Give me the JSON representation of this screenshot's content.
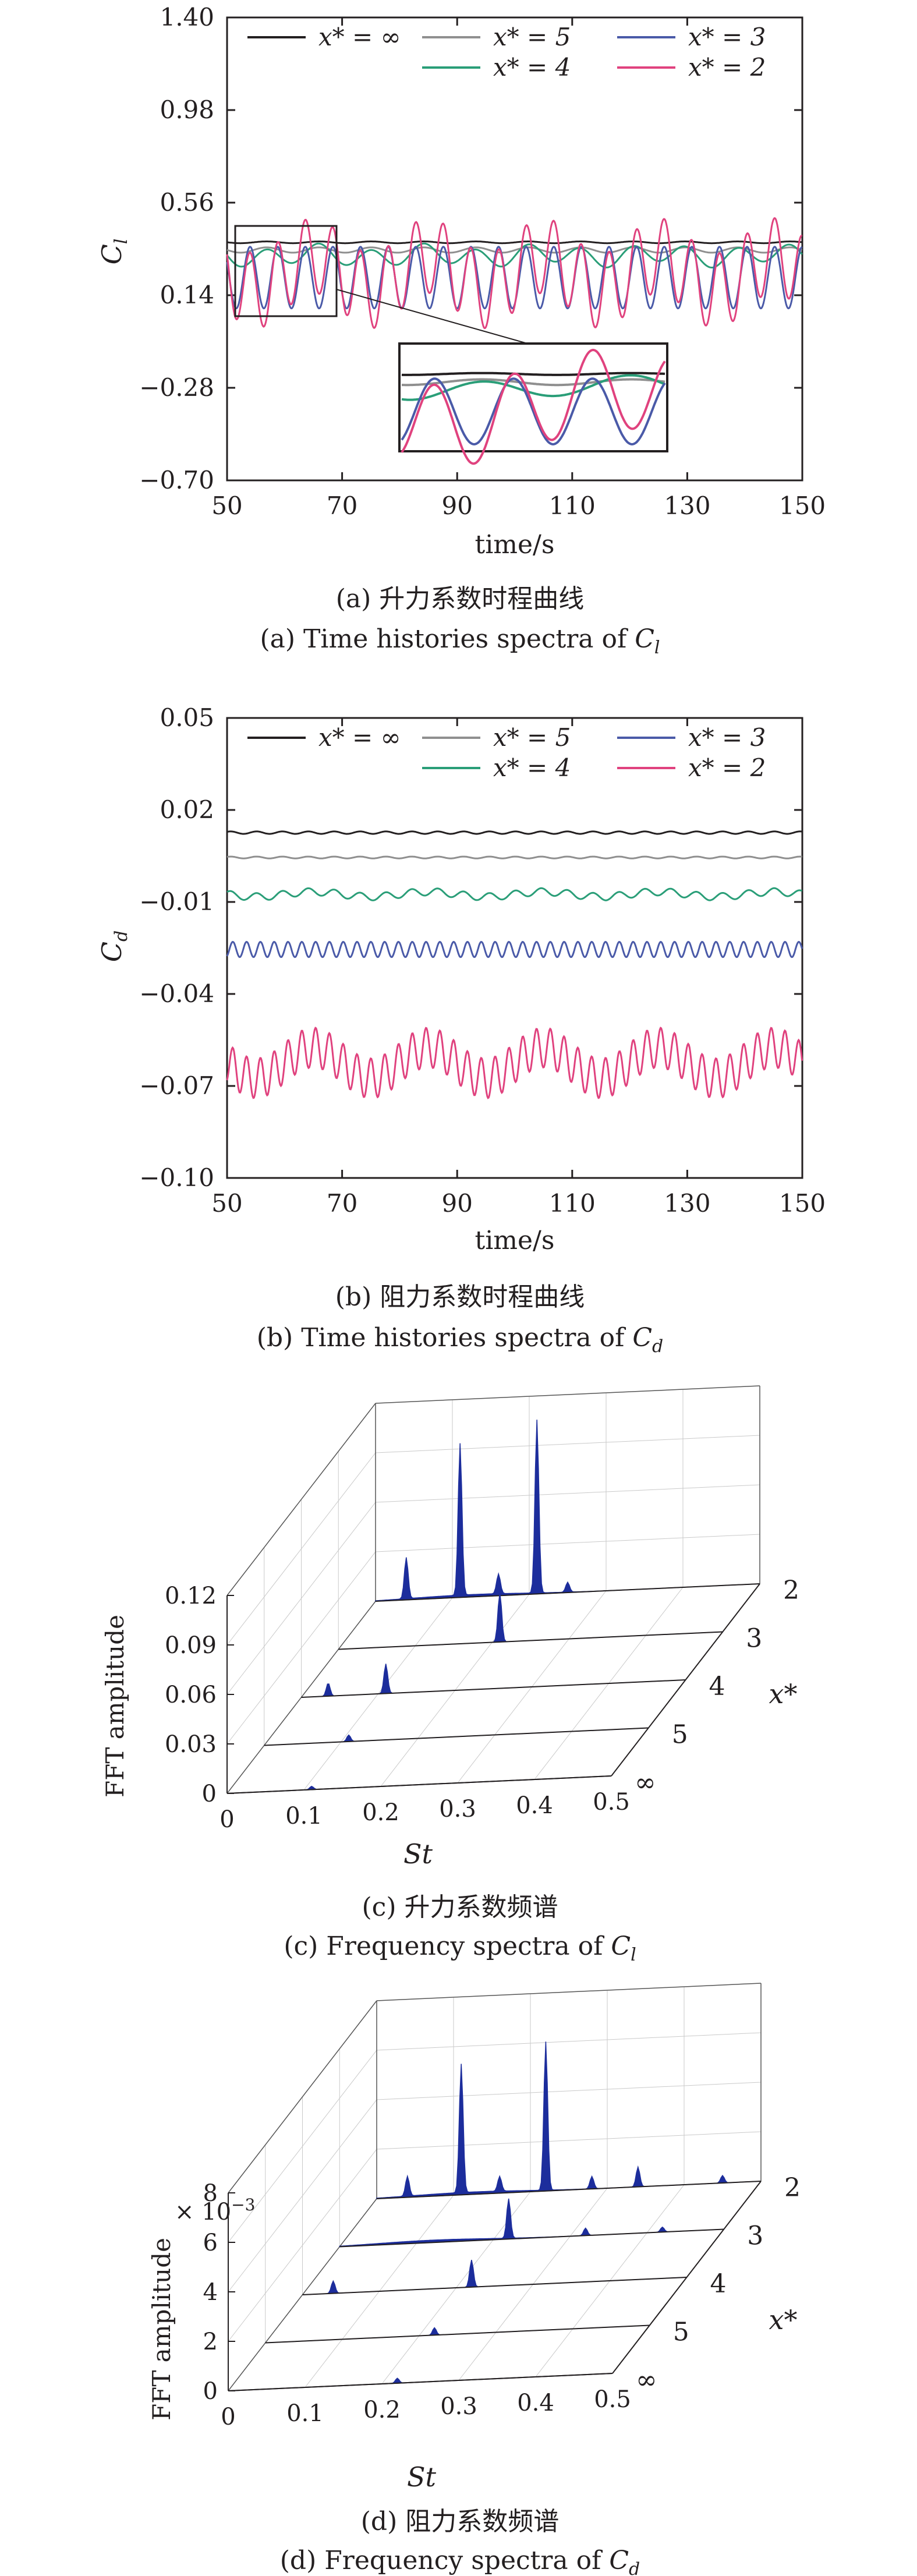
{
  "colors": {
    "inf": "#231f20",
    "x5": "#8f8f8f",
    "x3": "#4a5aa8",
    "x4": "#2a9e78",
    "x2": "#e0427e",
    "spectrum_fill": "#1c2d9c",
    "axis": "#231f20"
  },
  "chart_data": [
    {
      "type": "line",
      "panel": "a",
      "xlabel": "time/s",
      "ylabel": "C",
      "ylabel_sub": "l",
      "xlim": [
        50,
        150
      ],
      "ylim": [
        -0.7,
        1.4
      ],
      "xticks": [
        "50",
        "70",
        "90",
        "110",
        "130",
        "150"
      ],
      "yticks": [
        "1.40",
        "0.98",
        "0.56",
        "0.14",
        "−0.28",
        "−0.70"
      ],
      "legend_position": "top",
      "legend": [
        {
          "key": "inf",
          "label": "x* = ∞"
        },
        {
          "key": "x5",
          "label": "x* = 5"
        },
        {
          "key": "x3",
          "label": "x* = 3"
        },
        {
          "key": "x4",
          "label": "x* = 4"
        },
        {
          "key": "x2",
          "label": "x* = 2"
        }
      ],
      "series": [
        {
          "key": "inf",
          "name": "x* = ∞",
          "mean": 0.38,
          "amp": 0.004,
          "period": 9.1,
          "amp2": 0.0,
          "period2": 20
        },
        {
          "key": "x5",
          "name": "x* = 5",
          "mean": 0.345,
          "amp": 0.012,
          "period": 9.1,
          "amp2": 0.0,
          "period2": 20
        },
        {
          "key": "x4",
          "name": "x* = 4",
          "mean": 0.32,
          "amp": 0.04,
          "period": 9.1,
          "amp2": 0.015,
          "period2": 20
        },
        {
          "key": "x3",
          "name": "x* = 3",
          "mean": 0.22,
          "amp": 0.14,
          "period": 4.8,
          "amp2": 0.0,
          "period2": 20
        },
        {
          "key": "x2",
          "name": "x* = 2",
          "mean": 0.24,
          "amp": 0.17,
          "period": 4.8,
          "amp2": 0.08,
          "period2": 20
        }
      ],
      "inset": {
        "xlim": [
          52,
          68
        ],
        "ylim": [
          0.06,
          0.5
        ]
      },
      "caption_cn": "(a) 升力系数时程曲线",
      "caption_en_pre": "(a) Time histories spectra of ",
      "caption_en_var": "C",
      "caption_en_sub": "l"
    },
    {
      "type": "line",
      "panel": "b",
      "xlabel": "time/s",
      "ylabel": "C",
      "ylabel_sub": "d",
      "xlim": [
        50,
        150
      ],
      "ylim": [
        -0.1,
        0.05
      ],
      "xticks": [
        "50",
        "70",
        "90",
        "110",
        "130",
        "150"
      ],
      "yticks": [
        "0.05",
        "0.02",
        "−0.01",
        "−0.04",
        "−0.07",
        "−0.10"
      ],
      "legend_position": "top",
      "legend": [
        {
          "key": "inf",
          "label": "x* = ∞"
        },
        {
          "key": "x5",
          "label": "x* = 5"
        },
        {
          "key": "x3",
          "label": "x* = 3"
        },
        {
          "key": "x4",
          "label": "x* = 4"
        },
        {
          "key": "x2",
          "label": "x* = 2"
        }
      ],
      "series": [
        {
          "key": "inf",
          "name": "x* = ∞",
          "mean": 0.0126,
          "amp": 0.0004,
          "period": 4.5,
          "amp2": 0.0,
          "period2": 20
        },
        {
          "key": "x5",
          "name": "x* = 5",
          "mean": 0.0045,
          "amp": 0.0003,
          "period": 4.5,
          "amp2": 0.0,
          "period2": 20
        },
        {
          "key": "x4",
          "name": "x* = 4",
          "mean": -0.0075,
          "amp": 0.0012,
          "period": 4.5,
          "amp2": 0.0008,
          "period2": 20
        },
        {
          "key": "x3",
          "name": "x* = 3",
          "mean": -0.0255,
          "amp": 0.0025,
          "period": 2.4,
          "amp2": 0.0,
          "period2": 20
        },
        {
          "key": "x2",
          "name": "x* = 2",
          "mean": -0.0625,
          "amp": 0.0065,
          "period": 2.4,
          "amp2": 0.005,
          "period2": 20
        }
      ],
      "caption_cn": "(b) 阻力系数时程曲线",
      "caption_en_pre": "(b) Time histories spectra of ",
      "caption_en_var": "C",
      "caption_en_sub": "d"
    },
    {
      "type": "area",
      "panel": "c",
      "subtype": "waterfall-3d",
      "xlabel": "St",
      "zlabel": "FFT amplitude",
      "ylabel": "x*",
      "xlim": [
        0,
        0.5
      ],
      "zlim": [
        0,
        0.12
      ],
      "xticks": [
        "0",
        "0.1",
        "0.2",
        "0.3",
        "0.4",
        "0.5"
      ],
      "zticks": [
        "0",
        "0.03",
        "0.06",
        "0.09",
        "0.12"
      ],
      "yticks": [
        "∞",
        "5",
        "4",
        "3",
        "2"
      ],
      "series": [
        {
          "name": "∞",
          "peaks": [
            [
              0.11,
              0.002
            ]
          ]
        },
        {
          "name": "5",
          "peaks": [
            [
              0.11,
              0.004
            ]
          ]
        },
        {
          "name": "4",
          "peaks": [
            [
              0.035,
              0.008
            ],
            [
              0.11,
              0.018
            ]
          ]
        },
        {
          "name": "3",
          "peaks": [
            [
              0.21,
              0.03
            ]
          ]
        },
        {
          "name": "2",
          "peaks": [
            [
              0.04,
              0.025
            ],
            [
              0.11,
              0.092
            ],
            [
              0.16,
              0.012
            ],
            [
              0.21,
              0.105
            ],
            [
              0.25,
              0.006
            ]
          ]
        }
      ],
      "caption_cn": "(c) 升力系数频谱",
      "caption_en_pre": "(c) Frequency spectra of ",
      "caption_en_var": "C",
      "caption_en_sub": "l"
    },
    {
      "type": "area",
      "panel": "d",
      "subtype": "waterfall-3d",
      "xlabel": "St",
      "zlabel": "FFT amplitude",
      "ylabel": "x*",
      "scale_label": "× 10",
      "scale_exp": "−3",
      "xlim": [
        0,
        0.5
      ],
      "zlim": [
        0,
        8
      ],
      "xticks": [
        "0",
        "0.1",
        "0.2",
        "0.3",
        "0.4",
        "0.5"
      ],
      "zticks": [
        "0",
        "2",
        "4",
        "6",
        "8"
      ],
      "yticks": [
        "∞",
        "5",
        "4",
        "3",
        "2"
      ],
      "series": [
        {
          "name": "∞",
          "peaks": [
            [
              0.22,
              0.2
            ]
          ]
        },
        {
          "name": "5",
          "peaks": [
            [
              0.22,
              0.3
            ]
          ]
        },
        {
          "name": "4",
          "peaks": [
            [
              0.04,
              0.5
            ],
            [
              0.22,
              1.1
            ]
          ]
        },
        {
          "name": "3",
          "peaks": [
            [
              0.22,
              1.6
            ],
            [
              0.32,
              0.3
            ],
            [
              0.42,
              0.2
            ]
          ]
        },
        {
          "name": "2",
          "peaks": [
            [
              0.04,
              0.8
            ],
            [
              0.11,
              5.2
            ],
            [
              0.16,
              0.6
            ],
            [
              0.22,
              6.0
            ],
            [
              0.28,
              0.5
            ],
            [
              0.34,
              0.8
            ],
            [
              0.45,
              0.3
            ]
          ]
        }
      ],
      "caption_cn": "(d) 阻力系数频谱",
      "caption_en_pre": "(d) Frequency spectra of ",
      "caption_en_var": "C",
      "caption_en_sub": "d"
    }
  ]
}
